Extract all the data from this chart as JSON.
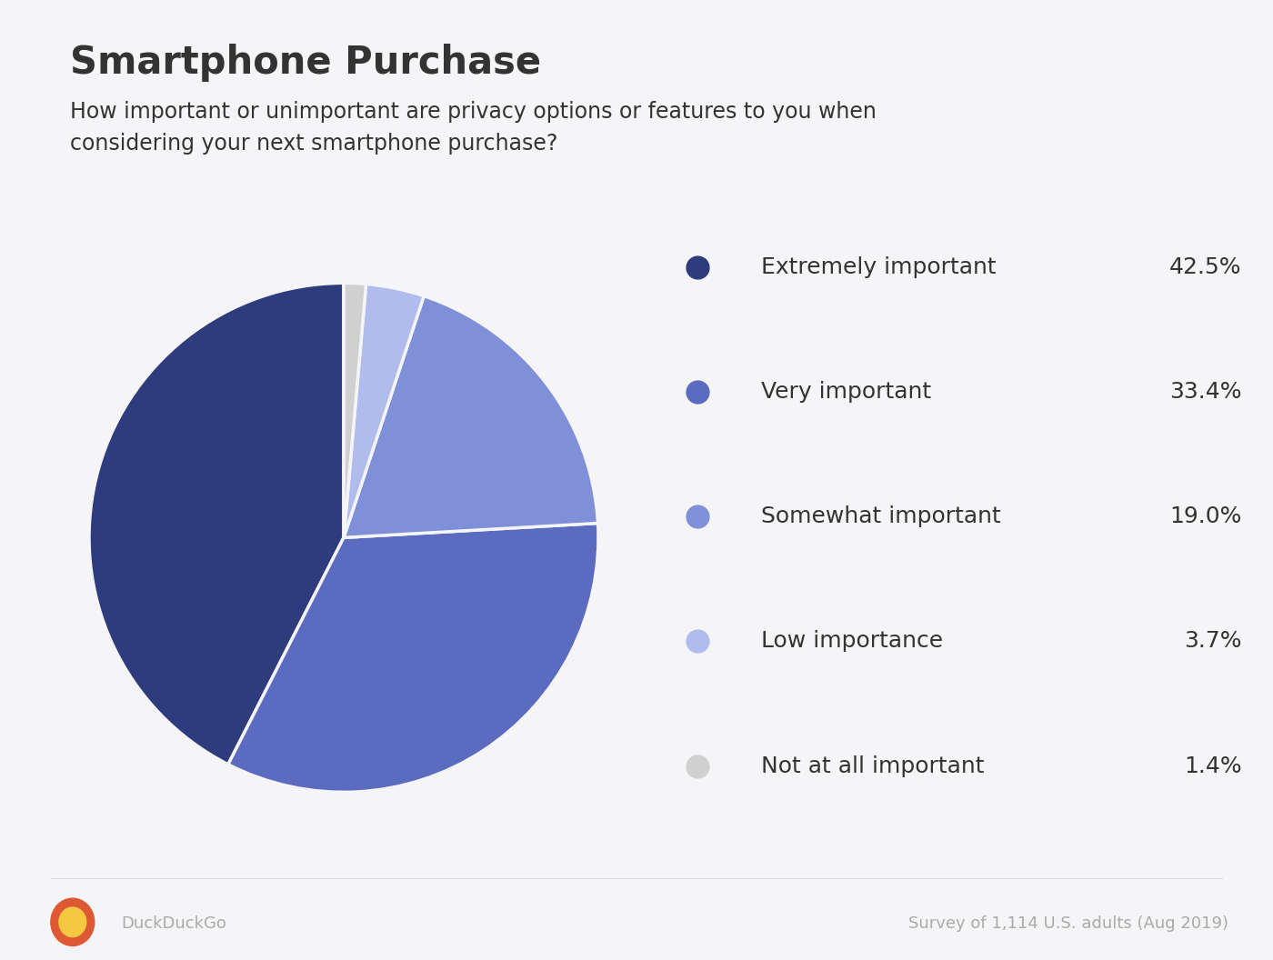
{
  "title": "Smartphone Purchase",
  "subtitle": "How important or unimportant are privacy options or features to you when\nconsidering your next smartphone purchase?",
  "labels": [
    "Extremely important",
    "Very important",
    "Somewhat important",
    "Low importance",
    "Not at all important"
  ],
  "values": [
    42.5,
    33.4,
    19.0,
    3.7,
    1.4
  ],
  "percentages": [
    "42.5%",
    "33.4%",
    "19.0%",
    "3.7%",
    "1.4%"
  ],
  "colors": [
    "#2e3c7e",
    "#5b6bbf",
    "#8090d8",
    "#b0bcee",
    "#d0d0d0"
  ],
  "background_color": "#f5f5f7",
  "title_fontsize": 30,
  "subtitle_fontsize": 17,
  "legend_label_fontsize": 18,
  "legend_pct_fontsize": 18,
  "footer_text": "Survey of 1,114 U.S. adults (Aug 2019)",
  "footer_brand": "DuckDuckGo",
  "footer_fontsize": 13,
  "text_color": "#333333",
  "footer_color": "#aaaaaa",
  "startangle": 90,
  "counterclock": false
}
